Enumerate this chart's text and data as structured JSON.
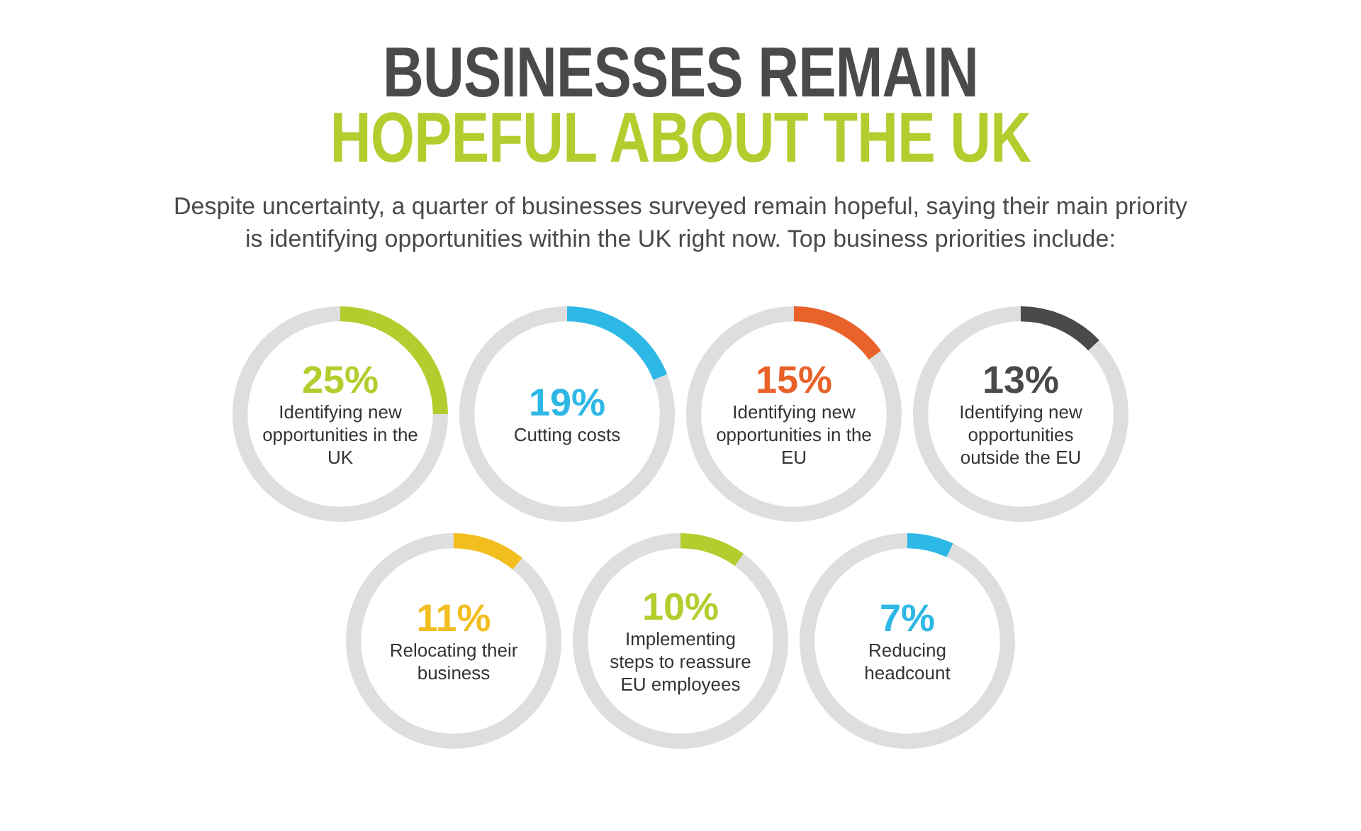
{
  "chart_data": [
    {
      "type": "other",
      "title": "BUSINESSES REMAIN",
      "subtitle": "HOPEFUL ABOUT THE UK",
      "annotations": [
        "Despite uncertainty, a quarter of businesses surveyed remain hopeful, saying their main priority is identifying opportunities within the UK right now. Top business priorities include:"
      ]
    },
    {
      "type": "donut",
      "categories": [
        "Identifying new opportunities in the UK",
        null
      ],
      "values": [
        25,
        75
      ],
      "colors": [
        "#b5cc2e",
        "#dedede"
      ],
      "value_labels": [
        "25%",
        null
      ]
    },
    {
      "type": "donut",
      "categories": [
        "Cutting costs",
        null
      ],
      "values": [
        19,
        81
      ],
      "colors": [
        "#2eb8e6",
        "#dedede"
      ],
      "value_labels": [
        "19%",
        null
      ]
    },
    {
      "type": "donut",
      "categories": [
        "Identifying new opportunities in the EU",
        null
      ],
      "values": [
        15,
        85
      ],
      "colors": [
        "#e8622a",
        "#dedede"
      ],
      "value_labels": [
        "15%",
        null
      ]
    },
    {
      "type": "donut",
      "categories": [
        "Identifying new opportunities outside the EU",
        null
      ],
      "values": [
        13,
        87
      ],
      "colors": [
        "#4a4a4c",
        "#dedede"
      ],
      "value_labels": [
        "13%",
        null
      ]
    },
    {
      "type": "donut",
      "categories": [
        "Relocating their business",
        null
      ],
      "values": [
        11,
        89
      ],
      "colors": [
        "#f2be1f",
        "#dedede"
      ],
      "value_labels": [
        "11%",
        null
      ]
    },
    {
      "type": "donut",
      "categories": [
        "Implementing steps to reassure EU employees",
        null
      ],
      "values": [
        10,
        90
      ],
      "colors": [
        "#b5cc2e",
        "#dedede"
      ],
      "value_labels": [
        "10%",
        null
      ]
    },
    {
      "type": "donut",
      "categories": [
        "Reducing headcount",
        null
      ],
      "values": [
        7,
        93
      ],
      "colors": [
        "#2eb8e6",
        "#dedede"
      ],
      "value_labels": [
        "7%",
        null
      ]
    }
  ]
}
